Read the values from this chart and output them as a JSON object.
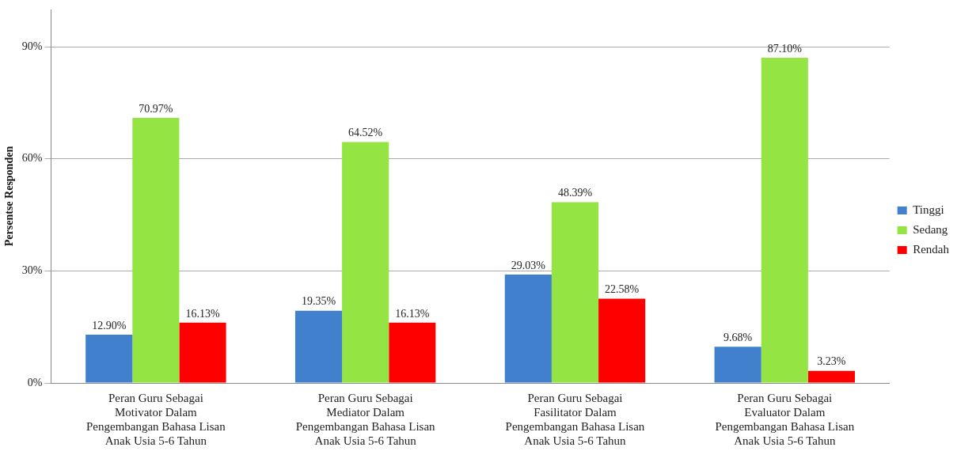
{
  "chart_data": {
    "type": "bar",
    "categories": [
      "Peran Guru Sebagai\nMotivator Dalam\nPengembangan Bahasa Lisan\nAnak Usia 5-6 Tahun",
      "Peran Guru Sebagai\nMediator Dalam\nPengembangan Bahasa Lisan\nAnak Usia 5-6 Tahun",
      "Peran Guru Sebagai\nFasilitator Dalam\nPengembangan Bahasa Lisan\nAnak Usia 5-6 Tahun",
      "Peran Guru Sebagai\nEvaluator Dalam\nPengembangan Bahasa Lisan\nAnak Usia 5-6 Tahun"
    ],
    "ylabel": "Persentse Responden",
    "series": [
      {
        "name": "Tinggi",
        "color": "#4080cc",
        "values": [
          12.9,
          19.35,
          29.03,
          9.68
        ],
        "value_labels": [
          "12.90%",
          "19.35%",
          "29.03%",
          "9.68%"
        ]
      },
      {
        "name": "Sedang",
        "color": "#94e444",
        "values": [
          70.97,
          64.52,
          48.39,
          87.1
        ],
        "value_labels": [
          "70.97%",
          "64.52%",
          "48.39%",
          "87.10%"
        ]
      },
      {
        "name": "Rendah",
        "color": "#ff0000",
        "values": [
          16.13,
          16.13,
          22.58,
          3.23
        ],
        "value_labels": [
          "16.13%",
          "16.13%",
          "22.58%",
          "3.23%"
        ]
      }
    ],
    "ylim": [
      0,
      100
    ],
    "yticks": [
      {
        "value": 0,
        "label": "0%"
      },
      {
        "value": 30,
        "label": "30%"
      },
      {
        "value": 60,
        "label": "60%"
      },
      {
        "value": 90,
        "label": "90%"
      }
    ],
    "grid": "y",
    "legend": "right"
  }
}
